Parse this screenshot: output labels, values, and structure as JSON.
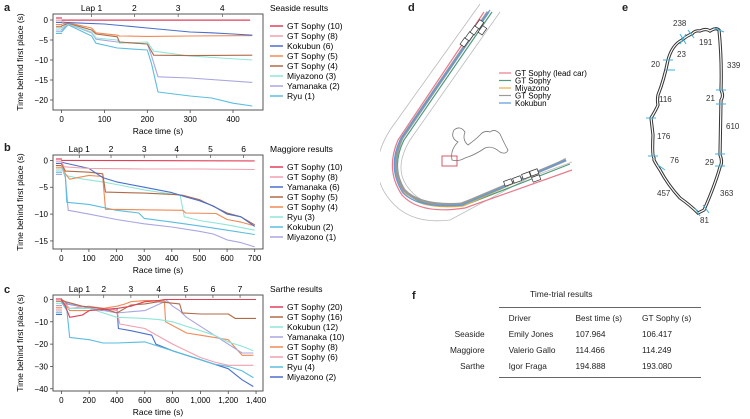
{
  "panels": {
    "a": "a",
    "b": "b",
    "c": "c",
    "d": "d",
    "e": "e",
    "f": "f"
  },
  "chart_data": [
    {
      "id": "a",
      "type": "line",
      "title": "Seaside results",
      "xlabel": "Race time (s)",
      "ylabel": "Time behind first place (s)",
      "xlim": [
        -20,
        470
      ],
      "ylim": [
        -22.5,
        1.5
      ],
      "xticks": [
        0,
        100,
        200,
        300,
        400
      ],
      "xtick_labels": [
        "0",
        "100",
        "200",
        "300",
        "400"
      ],
      "yticks": [
        0,
        -5,
        -10,
        -15,
        -20
      ],
      "ytick_labels": [
        "0",
        "−5",
        "−10",
        "−15",
        "−20"
      ],
      "laps": [
        {
          "label": "Lap 1",
          "x": 70
        },
        {
          "label": "2",
          "x": 170
        },
        {
          "label": "3",
          "x": 272
        },
        {
          "label": "4",
          "x": 375
        }
      ],
      "legend_position": "right",
      "series": [
        {
          "name": "GT Sophy (10)",
          "color": "#e0405a",
          "x": [
            0,
            50,
            100,
            200,
            300,
            440
          ],
          "y": [
            0,
            0,
            0,
            0,
            0,
            0
          ]
        },
        {
          "name": "GT Sophy (8)",
          "color": "#f0a0b0",
          "x": [
            0,
            50,
            100,
            200,
            300,
            440
          ],
          "y": [
            -0.1,
            -0.1,
            -0.1,
            -0.1,
            -0.1,
            -0.1
          ]
        },
        {
          "name": "Kokubun (6)",
          "color": "#4a6fcc",
          "x": [
            0,
            10,
            50,
            100,
            150,
            200,
            250,
            300,
            350,
            400,
            445
          ],
          "y": [
            -0.5,
            -0.6,
            -0.8,
            -1.0,
            -1.5,
            -2.0,
            -2.5,
            -3.0,
            -3.2,
            -3.5,
            -3.8
          ]
        },
        {
          "name": "GT Sophy (5)",
          "color": "#ef8a55",
          "x": [
            0,
            15,
            70,
            80,
            130,
            135,
            200,
            300,
            445
          ],
          "y": [
            -1.0,
            -0.7,
            -2.0,
            -3.2,
            -3.8,
            -4.0,
            -4.1,
            -4.0,
            -3.9
          ]
        },
        {
          "name": "GT Sophy (4)",
          "color": "#b06a48",
          "x": [
            0,
            15,
            70,
            80,
            130,
            135,
            200,
            215,
            300,
            445
          ],
          "y": [
            -1.5,
            -0.8,
            -2.5,
            -3.5,
            -4.2,
            -5.5,
            -6.0,
            -8.8,
            -8.9,
            -8.8
          ]
        },
        {
          "name": "Miyazono (3)",
          "color": "#8fe6d8",
          "x": [
            0,
            15,
            70,
            80,
            130,
            135,
            200,
            215,
            300,
            445
          ],
          "y": [
            -2.0,
            -0.9,
            -3.0,
            -4.5,
            -5.0,
            -5.8,
            -5.5,
            -7.8,
            -9.0,
            -10.0
          ]
        },
        {
          "name": "Yamanaka (2)",
          "color": "#a9a6e0",
          "x": [
            0,
            15,
            70,
            80,
            130,
            200,
            210,
            225,
            300,
            445
          ],
          "y": [
            -2.5,
            -1.0,
            -3.2,
            -4.8,
            -5.5,
            -6.0,
            -9.0,
            -14.2,
            -14.5,
            -15.6
          ]
        },
        {
          "name": "Ryu (1)",
          "color": "#5bbde0",
          "x": [
            0,
            15,
            70,
            80,
            130,
            200,
            210,
            225,
            300,
            350,
            400,
            445
          ],
          "y": [
            -3.0,
            -1.2,
            -4.0,
            -5.8,
            -7.0,
            -7.5,
            -11.0,
            -18.0,
            -19.0,
            -19.5,
            -20.8,
            -21.5
          ]
        }
      ]
    },
    {
      "id": "b",
      "type": "line",
      "title": "Maggiore results",
      "xlabel": "Race time (s)",
      "ylabel": "Time behind first place (s)",
      "xlim": [
        -30,
        730
      ],
      "ylim": [
        -16.5,
        1.0
      ],
      "xticks": [
        0,
        100,
        200,
        300,
        400,
        500,
        600,
        700
      ],
      "xtick_labels": [
        "0",
        "100",
        "200",
        "300",
        "400",
        "500",
        "600",
        "700"
      ],
      "yticks": [
        0,
        -5,
        -10,
        -15
      ],
      "ytick_labels": [
        "0",
        "−5",
        "−10",
        "−15"
      ],
      "laps": [
        {
          "label": "Lap 1",
          "x": 65
        },
        {
          "label": "2",
          "x": 180
        },
        {
          "label": "3",
          "x": 300
        },
        {
          "label": "4",
          "x": 418
        },
        {
          "label": "5",
          "x": 540
        },
        {
          "label": "6",
          "x": 660
        }
      ],
      "legend_position": "right",
      "series": [
        {
          "name": "GT Sophy (10)",
          "color": "#e0405a",
          "x": [
            0,
            700
          ],
          "y": [
            0,
            -0.1
          ]
        },
        {
          "name": "GT Sophy (8)",
          "color": "#f0a0b0",
          "x": [
            0,
            10,
            100,
            300,
            500,
            700
          ],
          "y": [
            -0.2,
            -1.2,
            -1.5,
            -1.6,
            -1.6,
            -1.7
          ]
        },
        {
          "name": "Yamanaka (6)",
          "color": "#4a6fcc",
          "x": [
            0,
            15,
            100,
            150,
            200,
            300,
            400,
            450,
            500,
            550,
            600,
            650,
            700
          ],
          "y": [
            -0.3,
            -0.5,
            -1.5,
            -3.2,
            -4.0,
            -5.0,
            -6.0,
            -6.8,
            -7.5,
            -8.5,
            -10.0,
            -10.5,
            -12.3
          ]
        },
        {
          "name": "GT Sophy (5)",
          "color": "#b06a48",
          "x": [
            0,
            15,
            100,
            150,
            160,
            300,
            420,
            440,
            500,
            600,
            650,
            700
          ],
          "y": [
            -0.5,
            -2.0,
            -2.2,
            -2.5,
            -5.9,
            -6.1,
            -6.4,
            -6.5,
            -7.3,
            -9.8,
            -10.5,
            -12.0
          ]
        },
        {
          "name": "GT Sophy (4)",
          "color": "#ef8a55",
          "x": [
            0,
            15,
            30,
            60,
            100,
            150,
            160,
            300,
            440,
            450,
            560,
            600,
            650,
            700
          ],
          "y": [
            -0.6,
            -2.5,
            -3.5,
            -3.2,
            -2.8,
            -3.0,
            -9.1,
            -9.2,
            -9.3,
            -9.8,
            -9.9,
            -11.0,
            -11.5,
            -12.2
          ]
        },
        {
          "name": "Ryu (3)",
          "color": "#8fe6d8",
          "x": [
            0,
            15,
            80,
            150,
            200,
            300,
            430,
            445,
            500,
            600,
            700
          ],
          "y": [
            -0.7,
            -2.8,
            -3.5,
            -4.0,
            -4.5,
            -5.5,
            -6.5,
            -10.5,
            -11.2,
            -12.0,
            -13.0
          ]
        },
        {
          "name": "Kokubun (2)",
          "color": "#5bbde0",
          "x": [
            0,
            15,
            20,
            100,
            200,
            280,
            300,
            400,
            500,
            600,
            700
          ],
          "y": [
            -0.9,
            -3.0,
            -7.8,
            -8.2,
            -9.3,
            -9.8,
            -10.8,
            -11.5,
            -12.2,
            -13.0,
            -13.8
          ]
        },
        {
          "name": "Miyazono (1)",
          "color": "#a9a6e0",
          "x": [
            0,
            15,
            25,
            100,
            200,
            300,
            400,
            500,
            550,
            600,
            650,
            700
          ],
          "y": [
            -1.0,
            -3.2,
            -9.3,
            -10.0,
            -11.0,
            -11.8,
            -12.4,
            -13.2,
            -13.7,
            -14.8,
            -15.3,
            -16.1
          ]
        }
      ]
    },
    {
      "id": "c",
      "type": "line",
      "title": "Sarthe results",
      "xlabel": "Race time (s)",
      "ylabel": "Time behind first place (s)",
      "xlim": [
        -60,
        1450
      ],
      "ylim": [
        -41,
        2
      ],
      "xticks": [
        0,
        200,
        400,
        600,
        800,
        1000,
        1200,
        1400
      ],
      "xtick_labels": [
        "0",
        "200",
        "400",
        "600",
        "800",
        "1,000",
        "1,200",
        "1,400"
      ],
      "yticks": [
        0,
        -10,
        -20,
        -30,
        -40
      ],
      "ytick_labels": [
        "0",
        "−10",
        "−20",
        "−30",
        "−40"
      ],
      "laps": [
        {
          "label": "Lap 1",
          "x": 130
        },
        {
          "label": "2",
          "x": 305
        },
        {
          "label": "3",
          "x": 500
        },
        {
          "label": "4",
          "x": 700
        },
        {
          "label": "5",
          "x": 895
        },
        {
          "label": "6",
          "x": 1090
        },
        {
          "label": "7",
          "x": 1285
        }
      ],
      "legend_position": "right",
      "series": [
        {
          "name": "GT Sophy (20)",
          "color": "#e0405a",
          "x": [
            0,
            30,
            60,
            150,
            200,
            400,
            500,
            600,
            700,
            740,
            800,
            1000,
            1400
          ],
          "y": [
            0,
            -3,
            -8,
            -7,
            -5,
            -4,
            -3,
            -1,
            -0.5,
            0,
            0,
            0,
            0
          ]
        },
        {
          "name": "GT Sophy (16)",
          "color": "#b06a48",
          "x": [
            0,
            30,
            150,
            300,
            400,
            500,
            600,
            700,
            850,
            870,
            1000,
            1200,
            1250,
            1400
          ],
          "y": [
            0,
            -1,
            -3,
            -4,
            -6,
            -2.5,
            -2,
            -1,
            -2,
            -6,
            -6.5,
            -6.5,
            -8.5,
            -8.5
          ]
        },
        {
          "name": "Kokubun (12)",
          "color": "#8fe6d8",
          "x": [
            0,
            40,
            200,
            400,
            600,
            700,
            800,
            900,
            1000,
            1100,
            1200,
            1300,
            1380
          ],
          "y": [
            0,
            -4,
            -4,
            -8,
            -8.5,
            -9,
            -10,
            -12,
            -14,
            -16,
            -19,
            -21,
            -23
          ]
        },
        {
          "name": "Yamanaka (10)",
          "color": "#a9a6e0",
          "x": [
            0,
            50,
            400,
            600,
            760,
            800,
            850,
            900,
            1000,
            1100,
            1200,
            1300,
            1380
          ],
          "y": [
            0,
            -2,
            -6,
            -5,
            -0.5,
            -3,
            -5,
            -8,
            -12,
            -16,
            -20,
            -24,
            -24
          ]
        },
        {
          "name": "GT Sophy (8)",
          "color": "#ef8a55",
          "x": [
            0,
            60,
            200,
            300,
            400,
            460,
            500,
            600,
            740,
            750,
            900,
            1000,
            1200,
            1300,
            1380
          ],
          "y": [
            0,
            -5,
            -5,
            -4,
            -3,
            -2,
            -1,
            -0.5,
            -0.5,
            -10,
            -15,
            -16,
            -18,
            -25,
            -25
          ]
        },
        {
          "name": "GT Sophy (6)",
          "color": "#f0a0b0",
          "x": [
            0,
            60,
            200,
            400,
            420,
            600,
            800,
            1000,
            1100,
            1200,
            1380
          ],
          "y": [
            0,
            -4,
            -3,
            -5,
            -11,
            -13,
            -20,
            -26,
            -28,
            -29.5,
            -29.5
          ]
        },
        {
          "name": "Ryu (4)",
          "color": "#5bbde0",
          "x": [
            0,
            40,
            60,
            200,
            300,
            400,
            600,
            800,
            1000,
            1100,
            1200,
            1300,
            1380
          ],
          "y": [
            -1,
            -5,
            -17,
            -18,
            -19.5,
            -19.5,
            -19,
            -23,
            -27,
            -29,
            -30,
            -32,
            -35
          ]
        },
        {
          "name": "Miyazono (2)",
          "color": "#4a6fcc",
          "x": [
            0,
            40,
            300,
            400,
            410,
            500,
            650,
            680,
            800,
            1000,
            1100,
            1200,
            1300,
            1380
          ],
          "y": [
            -1,
            -2,
            -5,
            -4,
            -13,
            -14,
            -16,
            -20,
            -23,
            -27,
            -29,
            -31,
            -36,
            -39
          ]
        }
      ]
    }
  ],
  "panel_d": {
    "legend": [
      {
        "label": "GT Sophy (lead car)",
        "color": "#e87a8a"
      },
      {
        "label": "GT Sophy",
        "color": "#4f9a7a"
      },
      {
        "label": "Miyazono",
        "color": "#e0b040"
      },
      {
        "label": "GT Sophy",
        "color": "#9a9a9a"
      },
      {
        "label": "Kokubun",
        "color": "#5a9ae0"
      }
    ],
    "inset_highlight_color": "#d04a5a"
  },
  "panel_e": {
    "segment_labels": [
      "238",
      "191",
      "23",
      "20",
      "339",
      "116",
      "21",
      "610",
      "176",
      "76",
      "29",
      "457",
      "363",
      "81"
    ],
    "marker_color": "#3fb0d8"
  },
  "table_f": {
    "title": "Time-trial results",
    "headers": [
      "Driver",
      "Best time (s)",
      "GT Sophy (s)"
    ],
    "rows": [
      {
        "track": "Seaside",
        "driver": "Emily Jones",
        "best": "107.964",
        "sophy": "106.417"
      },
      {
        "track": "Maggiore",
        "driver": "Valerio Gallo",
        "best": "114.466",
        "sophy": "114.249"
      },
      {
        "track": "Sarthe",
        "driver": "Igor Fraga",
        "best": "194.888",
        "sophy": "193.080"
      }
    ]
  }
}
